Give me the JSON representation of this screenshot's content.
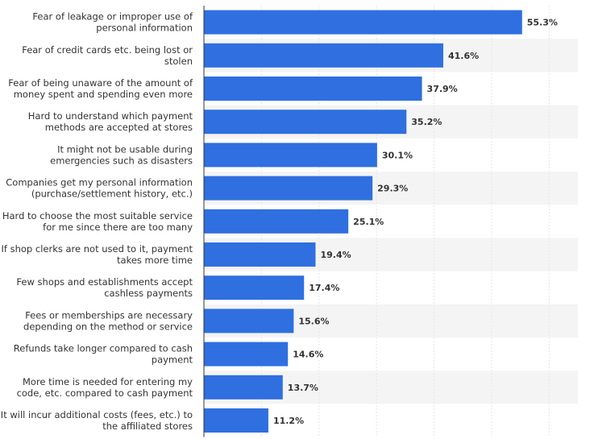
{
  "chart_data": {
    "type": "bar",
    "orientation": "horizontal",
    "title": "",
    "xlabel": "",
    "ylabel": "",
    "xlim": [
      0,
      65
    ],
    "grid": true,
    "value_suffix": "%",
    "colors": {
      "bar": "#2f6fe0",
      "band": "#f4f4f4",
      "gridline": "#e6e6e6",
      "axis": "#333333",
      "text": "#333333"
    },
    "categories": [
      [
        "Fear of leakage or improper use of",
        "personal information"
      ],
      [
        "Fear of credit cards etc. being lost or",
        "stolen"
      ],
      [
        "Fear of being unaware of the amount of",
        "money spent and spending even more"
      ],
      [
        "Hard to understand which payment",
        "methods are accepted at stores"
      ],
      [
        "It might not be usable during",
        "emergencies such as disasters"
      ],
      [
        "Companies get my personal information",
        "(purchase/settlement history, etc.)"
      ],
      [
        "Hard to choose the most suitable service",
        "for me since there are too many"
      ],
      [
        "If shop clerks are not used to it, payment",
        "takes more time"
      ],
      [
        "Few shops and establishments accept",
        "cashless payments"
      ],
      [
        "Fees or memberships are necessary",
        "depending on the method or service"
      ],
      [
        "Refunds take longer compared to cash",
        "payment"
      ],
      [
        "More time is needed for entering my",
        "code, etc. compared to cash payment"
      ],
      [
        "It will incur additional costs (fees, etc.) to",
        "the affiliated stores"
      ]
    ],
    "values": [
      55.3,
      41.6,
      37.9,
      35.2,
      30.1,
      29.3,
      25.1,
      19.4,
      17.4,
      15.6,
      14.6,
      13.7,
      11.2
    ],
    "value_labels": [
      "55.3%",
      "41.6%",
      "37.9%",
      "35.2%",
      "30.1%",
      "29.3%",
      "25.1%",
      "19.4%",
      "17.4%",
      "15.6%",
      "14.6%",
      "13.7%",
      "11.2%"
    ]
  }
}
